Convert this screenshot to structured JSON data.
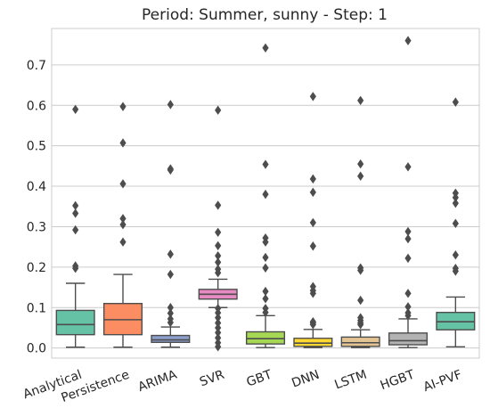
{
  "chart_data": {
    "type": "box",
    "title": "Period: Summer, sunny - Step: 1",
    "xlabel": "",
    "ylabel": "",
    "ylim": [
      -0.025,
      0.79
    ],
    "yticks": [
      "0.0",
      "0.1",
      "0.2",
      "0.3",
      "0.4",
      "0.5",
      "0.6",
      "0.7"
    ],
    "grid": "horizontal",
    "categories": [
      "Analytical",
      "Persistence",
      "ARIMA",
      "SVR",
      "GBT",
      "DNN",
      "LSTM",
      "HGBT",
      "AI-PVF"
    ],
    "colors": [
      "#66c2a5",
      "#fc8d62",
      "#8da0cb",
      "#e78ac3",
      "#a6d854",
      "#ffd92f",
      "#e5c494",
      "#b3b3b3",
      "#66c2a5"
    ],
    "boxes": [
      {
        "whisker_low": 0.002,
        "q1": 0.033,
        "median": 0.058,
        "q3": 0.093,
        "whisker_high": 0.16,
        "outliers": [
          0.197,
          0.203,
          0.292,
          0.333,
          0.352,
          0.59
        ]
      },
      {
        "whisker_low": 0.002,
        "q1": 0.033,
        "median": 0.07,
        "q3": 0.11,
        "whisker_high": 0.182,
        "outliers": [
          0.262,
          0.305,
          0.32,
          0.406,
          0.507,
          0.597
        ]
      },
      {
        "whisker_low": 0.002,
        "q1": 0.014,
        "median": 0.02,
        "q3": 0.031,
        "whisker_high": 0.052,
        "outliers": [
          0.063,
          0.072,
          0.086,
          0.1,
          0.182,
          0.232,
          0.44,
          0.443,
          0.602
        ]
      },
      {
        "whisker_low": 0.1,
        "q1": 0.121,
        "median": 0.133,
        "q3": 0.145,
        "whisker_high": 0.17,
        "outliers": [
          0.003,
          0.013,
          0.025,
          0.038,
          0.05,
          0.062,
          0.075,
          0.087,
          0.098,
          0.186,
          0.195,
          0.212,
          0.228,
          0.253,
          0.286,
          0.353,
          0.588
        ]
      },
      {
        "whisker_low": 0.001,
        "q1": 0.01,
        "median": 0.023,
        "q3": 0.04,
        "whisker_high": 0.08,
        "outliers": [
          0.088,
          0.098,
          0.122,
          0.14,
          0.198,
          0.224,
          0.262,
          0.272,
          0.38,
          0.454,
          0.742
        ]
      },
      {
        "whisker_low": 0.001,
        "q1": 0.004,
        "median": 0.012,
        "q3": 0.024,
        "whisker_high": 0.046,
        "outliers": [
          0.058,
          0.062,
          0.065,
          0.135,
          0.142,
          0.152,
          0.252,
          0.31,
          0.385,
          0.418,
          0.622
        ]
      },
      {
        "whisker_low": 0.001,
        "q1": 0.004,
        "median": 0.013,
        "q3": 0.027,
        "whisker_high": 0.045,
        "outliers": [
          0.058,
          0.062,
          0.068,
          0.075,
          0.118,
          0.192,
          0.198,
          0.425,
          0.455,
          0.612
        ]
      },
      {
        "whisker_low": 0.001,
        "q1": 0.008,
        "median": 0.018,
        "q3": 0.037,
        "whisker_high": 0.072,
        "outliers": [
          0.08,
          0.087,
          0.102,
          0.135,
          0.222,
          0.27,
          0.288,
          0.448,
          0.76
        ]
      },
      {
        "whisker_low": 0.003,
        "q1": 0.045,
        "median": 0.065,
        "q3": 0.088,
        "whisker_high": 0.126,
        "outliers": [
          0.19,
          0.197,
          0.23,
          0.308,
          0.358,
          0.372,
          0.383,
          0.608
        ]
      }
    ]
  }
}
